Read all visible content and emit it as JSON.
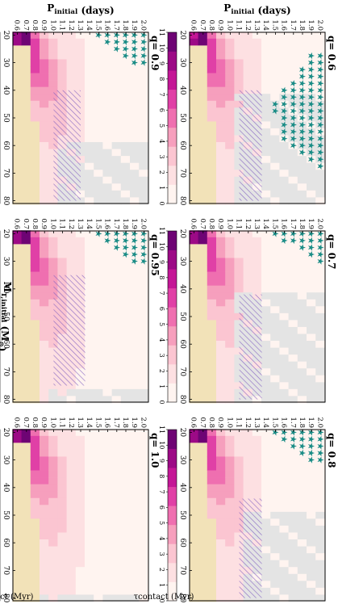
{
  "figure": {
    "ylabel_html": "P<sub>initial</sub> (days)",
    "xlabel_html": "M<sub>T,initial</sub> (M<sub>⊙</sub>)",
    "cbar_label": "τcontact (Myr)",
    "colors": {
      "star": "#1a8c86",
      "gray": "#e4e4e4",
      "tan": "#f2e2b8",
      "hatch": "#7d5bbf",
      "cmap": [
        "#fff4f0",
        "#fde0e2",
        "#fbc5d1",
        "#f69fbd",
        "#ef6fb0",
        "#e040a6",
        "#c41796",
        "#9c0a86",
        "#6e0474"
      ]
    }
  },
  "chart_data": [
    {
      "type": "heatmap",
      "panel_title": "q= 0.6",
      "x": [
        20,
        22.5,
        25,
        27.5,
        30,
        32.5,
        35,
        37.5,
        40,
        42.5,
        45,
        47.5,
        50,
        52.5,
        55,
        57.5,
        60,
        62.5,
        65,
        67.5,
        70,
        72.5,
        75,
        77.5,
        80
      ],
      "y": [
        0.6,
        0.7,
        0.8,
        0.9,
        1.0,
        1.1,
        1.2,
        1.3,
        1.4,
        1.5,
        1.6,
        1.7,
        1.8,
        1.9,
        2.0
      ],
      "xticks": [
        "20",
        "30",
        "40",
        "50",
        "60",
        "70",
        "80"
      ],
      "yticks": [
        "0.6",
        "0.7",
        "0.8",
        "0.9",
        "1.0",
        "1.1",
        "1.2",
        "1.3",
        "1.4",
        "1.5",
        "1.6",
        "1.7",
        "1.8",
        "1.9",
        "2.0"
      ],
      "colorbar": {
        "ticks": [
          "0",
          "1",
          "2",
          "3",
          "4",
          "5",
          "6",
          "7",
          "8",
          "9",
          "10",
          "11"
        ],
        "range": [
          0,
          11
        ]
      },
      "regions": {
        "star_bound": [
          2.05,
          2.05,
          2.05,
          1.9,
          1.9,
          1.75,
          1.75,
          1.65,
          1.6,
          1.6,
          1.5,
          1.5,
          1.6,
          1.6,
          1.55,
          1.55,
          1.7,
          1.75,
          1.9,
          1.95,
          2.05
        ],
        "star_xmax": 70,
        "gray_cut": 1.05,
        "gray_xmin": 42,
        "hatch": [
          1.1,
          1.35,
          40,
          80
        ]
      }
    },
    {
      "type": "heatmap",
      "panel_title": "q= 0.7",
      "x": [
        20,
        22.5,
        25,
        27.5,
        30,
        32.5,
        35,
        37.5,
        40,
        42.5,
        45,
        47.5,
        50,
        52.5,
        55,
        57.5,
        60,
        62.5,
        65,
        67.5,
        70,
        72.5,
        75,
        77.5,
        80
      ],
      "y": [
        0.6,
        0.7,
        0.8,
        0.9,
        1.0,
        1.1,
        1.2,
        1.3,
        1.4,
        1.5,
        1.6,
        1.7,
        1.8,
        1.9,
        2.0
      ],
      "xticks": [
        "20",
        "30",
        "40",
        "50",
        "60",
        "70",
        "80"
      ],
      "yticks": [
        "0.6",
        "0.7",
        "0.8",
        "0.9",
        "1.0",
        "1.1",
        "1.2",
        "1.3",
        "1.4",
        "1.5",
        "1.6",
        "1.7",
        "1.8",
        "1.9",
        "2.0"
      ],
      "colorbar": {
        "ticks": [
          "0",
          "1",
          "2",
          "3",
          "4",
          "5",
          "6",
          "7",
          "8",
          "9",
          "10",
          "11"
        ],
        "range": [
          0,
          11
        ]
      },
      "regions": {
        "star_bound": [
          1.5,
          1.6,
          1.75,
          1.85,
          1.95,
          2.05,
          2.05,
          2.05,
          2.05,
          2.05,
          2.05,
          2.05,
          2.05,
          2.05
        ],
        "star_xmax": 52,
        "gray_cut": 1.05,
        "gray_xmin": 42,
        "hatch": [
          1.1,
          1.35,
          42,
          80
        ]
      }
    },
    {
      "type": "heatmap",
      "panel_title": "q= 0.8",
      "x": [
        20,
        22.5,
        25,
        27.5,
        30,
        32.5,
        35,
        37.5,
        40,
        42.5,
        45,
        47.5,
        50,
        52.5,
        55,
        57.5,
        60,
        62.5,
        65,
        67.5,
        70,
        72.5,
        75,
        77.5,
        80
      ],
      "y": [
        0.6,
        0.7,
        0.8,
        0.9,
        1.0,
        1.1,
        1.2,
        1.3,
        1.4,
        1.5,
        1.6,
        1.7,
        1.8,
        1.9,
        2.0
      ],
      "xticks": [
        "20",
        "30",
        "40",
        "50",
        "60",
        "70",
        "80"
      ],
      "yticks": [
        "0.6",
        "0.7",
        "0.8",
        "0.9",
        "1.0",
        "1.1",
        "1.2",
        "1.3",
        "1.4",
        "1.5",
        "1.6",
        "1.7",
        "1.8",
        "1.9",
        "2.0"
      ],
      "colorbar": {
        "ticks": [
          "0",
          "1",
          "2",
          "3",
          "4",
          "5",
          "6",
          "7",
          "8",
          "9",
          "10",
          "11"
        ],
        "range": [
          0,
          11
        ]
      },
      "regions": {
        "star_bound": [
          1.5,
          1.6,
          1.7,
          1.8,
          1.9,
          2.05,
          2.05,
          2.05,
          2.05
        ],
        "star_xmax": 42,
        "gray_cut": 1.15,
        "gray_xmin": 50,
        "hatch": [
          1.1,
          1.35,
          44,
          80
        ]
      }
    },
    {
      "type": "heatmap",
      "panel_title": "q= 0.9",
      "x": [
        20,
        22.5,
        25,
        27.5,
        30,
        32.5,
        35,
        37.5,
        40,
        42.5,
        45,
        47.5,
        50,
        52.5,
        55,
        57.5,
        60,
        62.5,
        65,
        67.5,
        70,
        72.5,
        75,
        77.5,
        80
      ],
      "y": [
        0.6,
        0.7,
        0.8,
        0.9,
        1.0,
        1.1,
        1.2,
        1.3,
        1.4,
        1.5,
        1.6,
        1.7,
        1.8,
        1.9,
        2.0
      ],
      "xticks": [
        "20",
        "30",
        "40",
        "50",
        "60",
        "70",
        "80"
      ],
      "yticks": [
        "0.6",
        "0.7",
        "0.8",
        "0.9",
        "1.0",
        "1.1",
        "1.2",
        "1.3",
        "1.4",
        "1.5",
        "1.6",
        "1.7",
        "1.8",
        "1.9",
        "2.0"
      ],
      "colorbar": {
        "ticks": [
          "0",
          "1",
          "2",
          "3",
          "4",
          "5",
          "6",
          "7",
          "8",
          "9",
          "10",
          "11"
        ],
        "range": [
          0,
          11
        ]
      },
      "regions": {
        "star_bound": [
          1.5,
          1.6,
          1.7,
          1.8,
          1.9,
          2.05
        ],
        "star_xmax": 35,
        "gray_cut": 1.1,
        "gray_xmin": 58,
        "hatch": [
          1.0,
          1.3,
          40,
          80
        ]
      }
    },
    {
      "type": "heatmap",
      "panel_title": "q= 0.95",
      "x": [
        20,
        22.5,
        25,
        27.5,
        30,
        32.5,
        35,
        37.5,
        40,
        42.5,
        45,
        47.5,
        50,
        52.5,
        55,
        57.5,
        60,
        62.5,
        65,
        67.5,
        70,
        72.5,
        75,
        77.5,
        80
      ],
      "y": [
        0.6,
        0.7,
        0.8,
        0.9,
        1.0,
        1.1,
        1.2,
        1.3,
        1.4,
        1.5,
        1.6,
        1.7,
        1.8,
        1.9,
        2.0
      ],
      "xticks": [
        "20",
        "30",
        "40",
        "50",
        "60",
        "70",
        "80"
      ],
      "yticks": [
        "0.6",
        "0.7",
        "0.8",
        "0.9",
        "1.0",
        "1.1",
        "1.2",
        "1.3",
        "1.4",
        "1.5",
        "1.6",
        "1.7",
        "1.8",
        "1.9",
        "2.0"
      ],
      "colorbar": {
        "ticks": [
          "0",
          "1",
          "2",
          "3",
          "4",
          "5",
          "6",
          "7",
          "8",
          "9",
          "10",
          "11"
        ],
        "range": [
          0,
          11
        ]
      },
      "regions": {
        "star_bound": [
          1.5,
          1.6,
          1.7,
          1.8,
          1.9,
          2.05
        ],
        "star_xmax": 35,
        "gray_cut": 0.95,
        "gray_xmin": 76,
        "hatch": [
          1.0,
          1.35,
          35,
          75
        ]
      }
    },
    {
      "type": "heatmap",
      "panel_title": "q= 1.0",
      "x": [
        20,
        22.5,
        25,
        27.5,
        30,
        32.5,
        35,
        37.5,
        40,
        42.5,
        45,
        47.5,
        50,
        52.5,
        55,
        57.5,
        60,
        62.5,
        65,
        67.5,
        70,
        72.5,
        75,
        77.5,
        80
      ],
      "y": [
        0.6,
        0.7,
        0.8,
        0.9,
        1.0,
        1.1,
        1.2,
        1.3,
        1.4,
        1.5,
        1.6,
        1.7,
        1.8,
        1.9,
        2.0
      ],
      "xticks": [
        "20",
        "30",
        "40",
        "50",
        "60",
        "70",
        "80"
      ],
      "yticks": [
        "0.6",
        "0.7",
        "0.8",
        "0.9",
        "1.0",
        "1.1",
        "1.2",
        "1.3",
        "1.4",
        "1.5",
        "1.6",
        "1.7",
        "1.8",
        "1.9",
        "2.0"
      ],
      "colorbar": {
        "ticks": [
          "0",
          "1",
          "2",
          "3",
          "4",
          "5",
          "6",
          "7",
          "8",
          "9",
          "10",
          "11"
        ],
        "range": [
          0,
          11
        ]
      },
      "regions": {
        "star_bound": [],
        "star_xmax": 0,
        "gray_cut": 0.9,
        "gray_xmin": 78,
        "hatch": []
      }
    }
  ]
}
